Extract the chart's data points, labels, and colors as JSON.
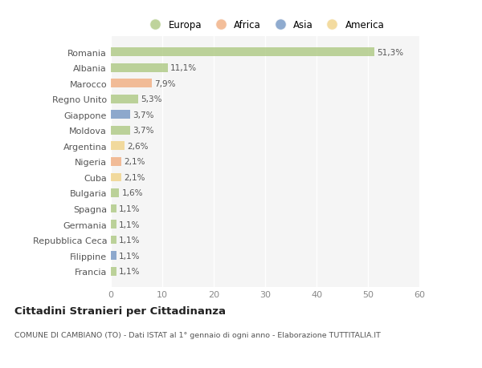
{
  "countries": [
    "Romania",
    "Albania",
    "Marocco",
    "Regno Unito",
    "Giappone",
    "Moldova",
    "Argentina",
    "Nigeria",
    "Cuba",
    "Bulgaria",
    "Spagna",
    "Germania",
    "Repubblica Ceca",
    "Filippine",
    "Francia"
  ],
  "values": [
    51.3,
    11.1,
    7.9,
    5.3,
    3.7,
    3.7,
    2.6,
    2.1,
    2.1,
    1.6,
    1.1,
    1.1,
    1.1,
    1.1,
    1.1
  ],
  "labels": [
    "51,3%",
    "11,1%",
    "7,9%",
    "5,3%",
    "3,7%",
    "3,7%",
    "2,6%",
    "2,1%",
    "2,1%",
    "1,6%",
    "1,1%",
    "1,1%",
    "1,1%",
    "1,1%",
    "1,1%"
  ],
  "colors": [
    "#a8c57a",
    "#a8c57a",
    "#f0a878",
    "#a8c57a",
    "#6a8fbf",
    "#a8c57a",
    "#f0d080",
    "#f0a878",
    "#f0d080",
    "#a8c57a",
    "#a8c57a",
    "#a8c57a",
    "#a8c57a",
    "#6a8fbf",
    "#a8c57a"
  ],
  "legend_labels": [
    "Europa",
    "Africa",
    "Asia",
    "America"
  ],
  "legend_colors": [
    "#a8c57a",
    "#f0a878",
    "#6a8fbf",
    "#f0d080"
  ],
  "title": "Cittadini Stranieri per Cittadinanza",
  "subtitle": "COMUNE DI CAMBIANO (TO) - Dati ISTAT al 1° gennaio di ogni anno - Elaborazione TUTTITALIA.IT",
  "xlim": [
    0,
    60
  ],
  "xticks": [
    0,
    10,
    20,
    30,
    40,
    50,
    60
  ],
  "bg_color": "#ffffff",
  "plot_bg_color": "#f5f5f5",
  "bar_alpha": 0.75,
  "bar_height": 0.55
}
